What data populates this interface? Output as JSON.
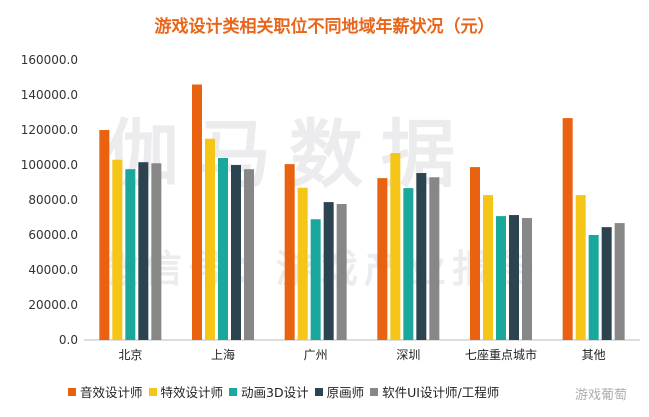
{
  "chart_data": {
    "type": "bar",
    "title": "游戏设计类相关职位不同地域年薪状况（元）",
    "categories": [
      "北京",
      "上海",
      "广州",
      "深圳",
      "七座重点城市",
      "其他"
    ],
    "ylim": [
      0,
      160000
    ],
    "yticks": [
      "0.0",
      "20000.0",
      "40000.0",
      "60000.0",
      "80000.0",
      "100000.0",
      "120000.0",
      "140000.0",
      "160000.0"
    ],
    "grid": false,
    "legend_position": "bottom",
    "series": [
      {
        "name": "音效设计师",
        "color": "#e8620f",
        "values": [
          120000,
          146000,
          100500,
          92500,
          98800,
          126800
        ]
      },
      {
        "name": "特效设计师",
        "color": "#f5c518",
        "values": [
          103000,
          115000,
          87000,
          106800,
          82800,
          82800
        ]
      },
      {
        "name": "动画3D设计",
        "color": "#1aa89c",
        "values": [
          97600,
          104000,
          69000,
          86800,
          70800,
          60000
        ]
      },
      {
        "name": "原画师",
        "color": "#2b4450",
        "values": [
          101600,
          100000,
          78800,
          95400,
          71400,
          64500
        ]
      },
      {
        "name": "软件UI设计师/工程师",
        "color": "#878787",
        "values": [
          101000,
          97600,
          77700,
          93000,
          69700,
          66800
        ]
      }
    ]
  },
  "watermarks": {
    "big1": "伽马数据",
    "big2": "微信号：游戏产业报告",
    "corner": "游戏葡萄"
  }
}
